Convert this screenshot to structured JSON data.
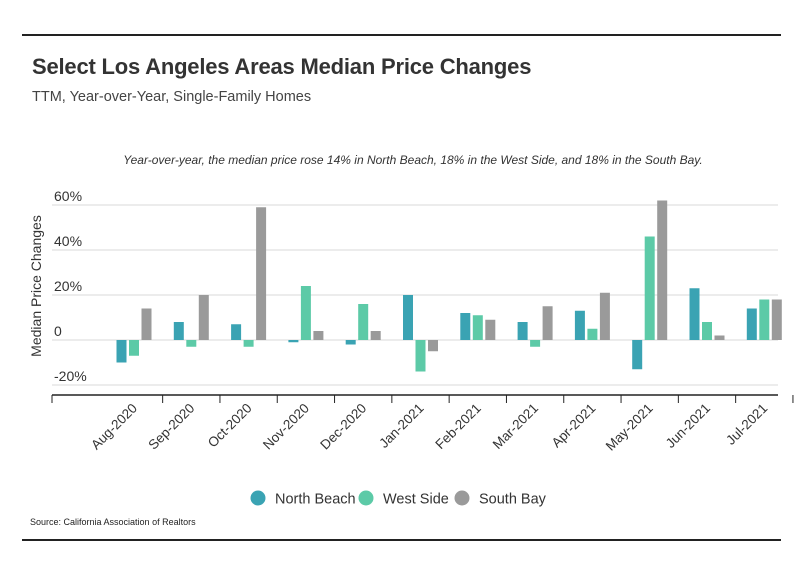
{
  "title": "Select Los Angeles Areas Median Price Changes",
  "subtitle": "TTM, Year-over-Year, Single-Family Homes",
  "source": "Source:  California Association of Realtors",
  "colors": {
    "north_beach": "#3aa3b3",
    "west_side": "#5ccaa7",
    "south_bay": "#9a9a9a"
  },
  "chart_data": {
    "type": "bar",
    "annotation": "Year-over-year, the median price rose 14% in North Beach, 18% in the West Side, and 18% in the South Bay.",
    "ylabel": "Median Price Changes",
    "xlabel": "",
    "ylim": [
      -25,
      65
    ],
    "y_ticks": [
      {
        "value": 60,
        "label": "60%"
      },
      {
        "value": 40,
        "label": "40%"
      },
      {
        "value": 20,
        "label": "20%"
      },
      {
        "value": 0,
        "label": "0"
      },
      {
        "value": -20,
        "label": "-20%"
      }
    ],
    "grid": true,
    "legend_position": "bottom",
    "categories": [
      "Aug-2020",
      "Sep-2020",
      "Oct-2020",
      "Nov-2020",
      "Dec-2020",
      "Jan-2021",
      "Feb-2021",
      "Mar-2021",
      "Apr-2021",
      "May-2021",
      "Jun-2021",
      "Jul-2021"
    ],
    "series": [
      {
        "name": "North Beach",
        "color": "#3aa3b3",
        "values": [
          -10,
          8,
          7,
          -1,
          -2,
          20,
          12,
          8,
          13,
          -13,
          23,
          14
        ]
      },
      {
        "name": "West Side",
        "color": "#5ccaa7",
        "values": [
          -7,
          -3,
          -3,
          24,
          16,
          -14,
          11,
          -3,
          5,
          46,
          8,
          18
        ]
      },
      {
        "name": "South Bay",
        "color": "#9a9a9a",
        "values": [
          14,
          20,
          59,
          4,
          4,
          -5,
          9,
          15,
          21,
          62,
          2,
          18
        ]
      }
    ]
  }
}
